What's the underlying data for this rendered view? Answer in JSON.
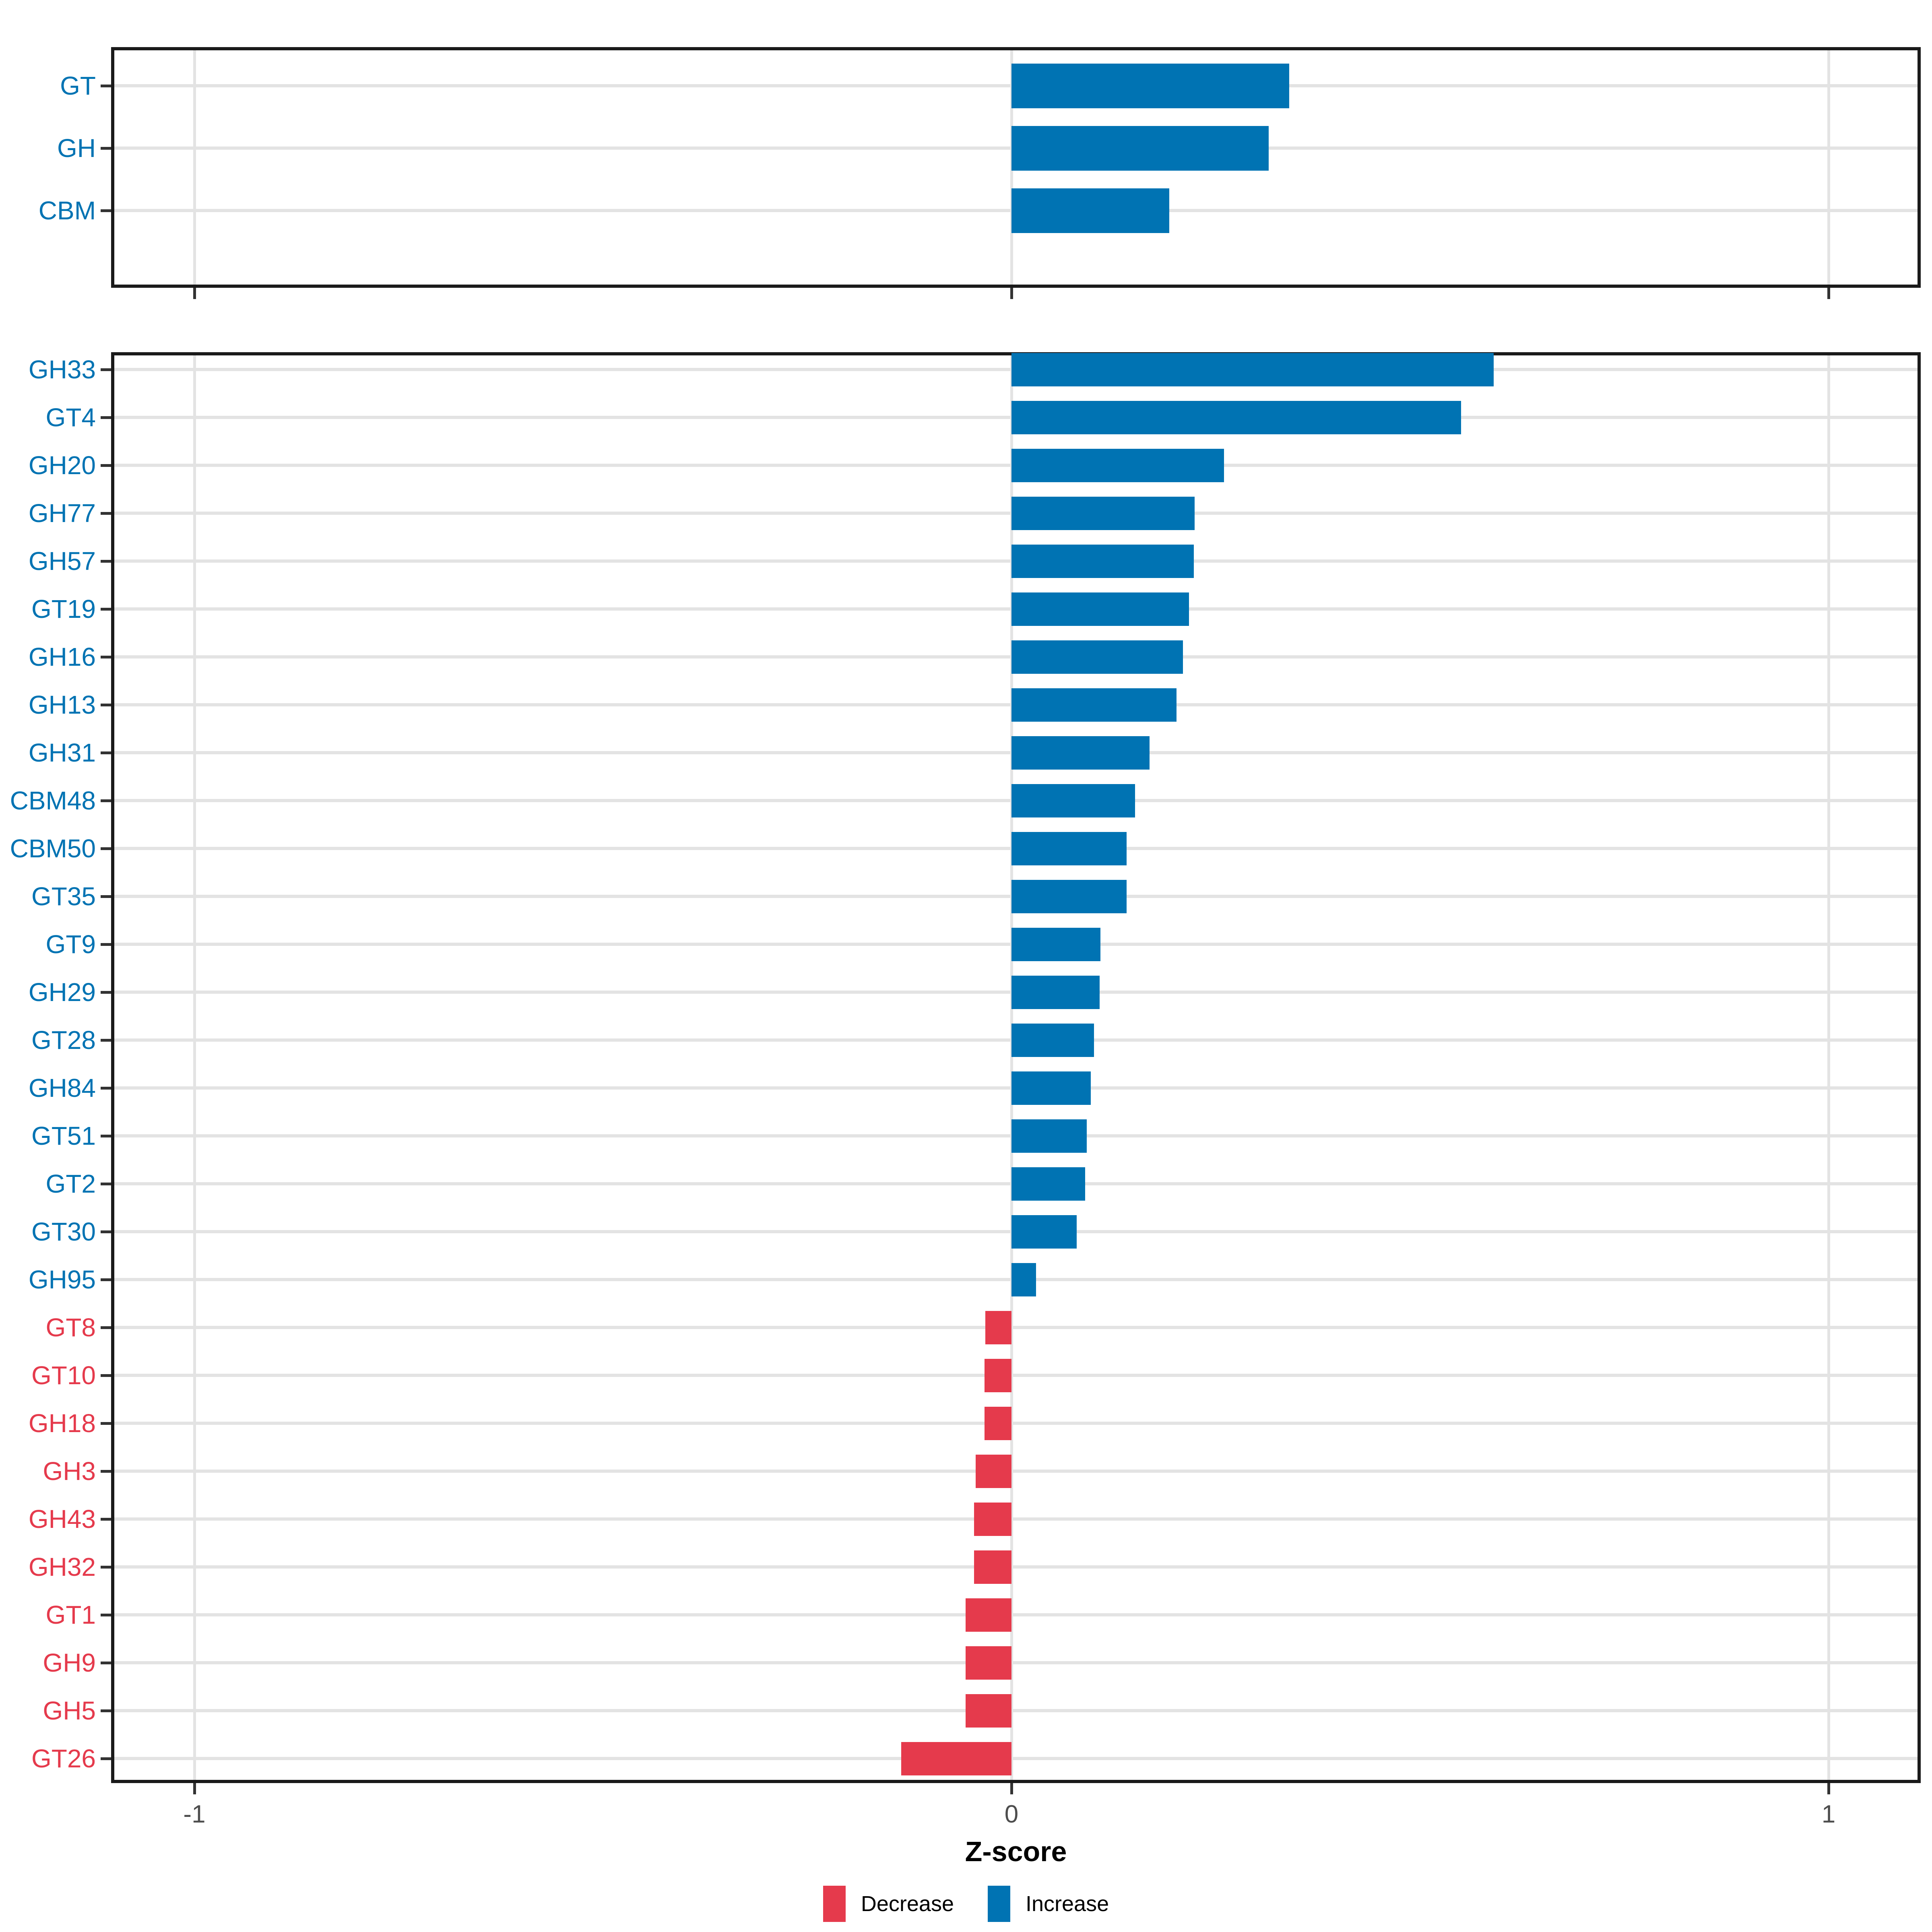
{
  "colors": {
    "increase": "#0073B3",
    "decrease": "#E53A4C",
    "grid": "#E3E3E3",
    "border": "#1A1A1A",
    "axis_text": "#4D4D4D",
    "tick_mark": "#333333",
    "title": "#000000"
  },
  "x_axis": {
    "label": "Z-score",
    "tick_values": [
      -1,
      0,
      1
    ],
    "tick_labels": [
      "-1",
      "0",
      "1"
    ],
    "range": [
      -1.1,
      1.1
    ]
  },
  "legend": {
    "items": [
      {
        "label": "Decrease",
        "direction": "decrease"
      },
      {
        "label": "Increase",
        "direction": "increase"
      }
    ]
  },
  "chart_data": [
    {
      "type": "bar",
      "orientation": "horizontal",
      "panel": "summary",
      "categories": [
        "GT",
        "GH",
        "CBM"
      ],
      "values": [
        0.34,
        0.315,
        0.193
      ],
      "directions": [
        "increase",
        "increase",
        "increase"
      ],
      "xlabel": "Z-score",
      "xlim": [
        -1.1,
        1.1
      ],
      "grid": true,
      "legend_position": "bottom"
    },
    {
      "type": "bar",
      "orientation": "horizontal",
      "panel": "families",
      "categories": [
        "GH33",
        "GT4",
        "GH20",
        "GH77",
        "GH57",
        "GT19",
        "GH16",
        "GH13",
        "GH31",
        "CBM48",
        "CBM50",
        "GT35",
        "GT9",
        "GH29",
        "GT28",
        "GH84",
        "GT51",
        "GT2",
        "GT30",
        "GH95",
        "GT8",
        "GT10",
        "GH18",
        "GH3",
        "GH43",
        "GH32",
        "GT1",
        "GH9",
        "GH5",
        "GT26"
      ],
      "values": [
        0.59,
        0.55,
        0.26,
        0.224,
        0.223,
        0.217,
        0.21,
        0.202,
        0.169,
        0.151,
        0.141,
        0.141,
        0.109,
        0.108,
        0.101,
        0.097,
        0.092,
        0.09,
        0.08,
        0.03,
        -0.032,
        -0.033,
        -0.033,
        -0.044,
        -0.046,
        -0.046,
        -0.056,
        -0.056,
        -0.056,
        -0.135
      ],
      "directions": [
        "increase",
        "increase",
        "increase",
        "increase",
        "increase",
        "increase",
        "increase",
        "increase",
        "increase",
        "increase",
        "increase",
        "increase",
        "increase",
        "increase",
        "increase",
        "increase",
        "increase",
        "increase",
        "increase",
        "increase",
        "decrease",
        "decrease",
        "decrease",
        "decrease",
        "decrease",
        "decrease",
        "decrease",
        "decrease",
        "decrease",
        "decrease"
      ],
      "xlabel": "Z-score",
      "xlim": [
        -1.1,
        1.1
      ],
      "grid": true
    }
  ]
}
